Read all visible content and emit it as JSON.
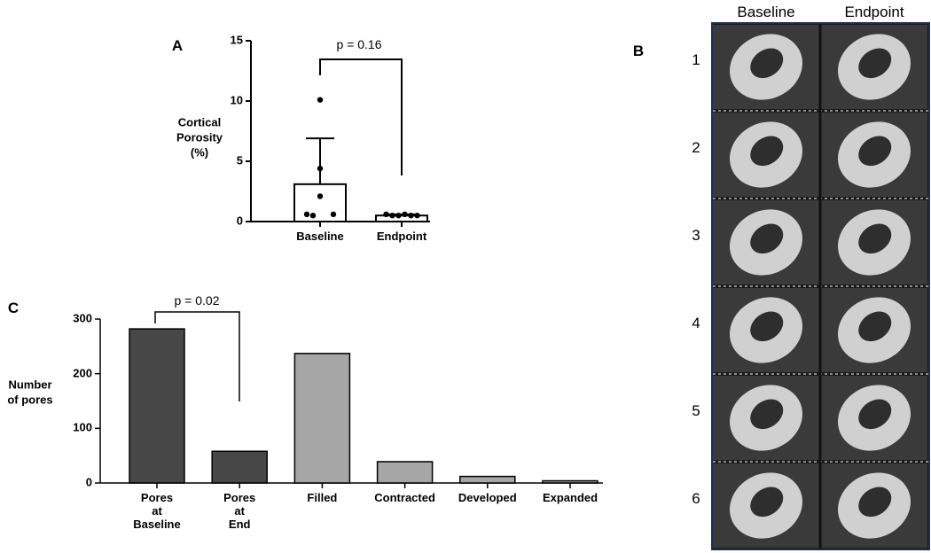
{
  "chart_data": [
    {
      "type": "bar",
      "panel": "A",
      "ylabel": [
        "Cortical",
        "Porosity",
        "(%)"
      ],
      "categories": [
        "Baseline",
        "Endpoint"
      ],
      "values": [
        3.1,
        0.5
      ],
      "errors": [
        3.8,
        0.1
      ],
      "points": [
        [
          10.1,
          4.4,
          2.1,
          0.6,
          0.6,
          0.5
        ],
        [
          0.6,
          0.5,
          0.5,
          0.6,
          0.5,
          0.5
        ]
      ],
      "colors": [
        "#ffffff",
        "#ffffff"
      ],
      "annotation": "p = 0.16",
      "ylim": [
        0,
        15
      ],
      "yticks": [
        0,
        5,
        10,
        15
      ]
    },
    {
      "type": "bar",
      "panel": "C",
      "ylabel": [
        "Number",
        "of pores"
      ],
      "categories": [
        "Pores\nat\nBaseline",
        "Pores\nat\nEnd",
        "Filled",
        "Contracted",
        "Developed",
        "Expanded"
      ],
      "values": [
        282,
        58,
        237,
        39,
        12,
        4
      ],
      "colors": [
        "#474747",
        "#474747",
        "#a6a6a6",
        "#a6a6a6",
        "#a6a6a6",
        "#a6a6a6"
      ],
      "annotation": "p = 0.02",
      "ylim": [
        0,
        300
      ],
      "yticks": [
        0,
        100,
        200,
        300
      ]
    }
  ],
  "panel_b": {
    "label": "B",
    "columns": [
      "Baseline",
      "Endpoint"
    ],
    "rows": [
      "1",
      "2",
      "3",
      "4",
      "5",
      "6"
    ]
  }
}
